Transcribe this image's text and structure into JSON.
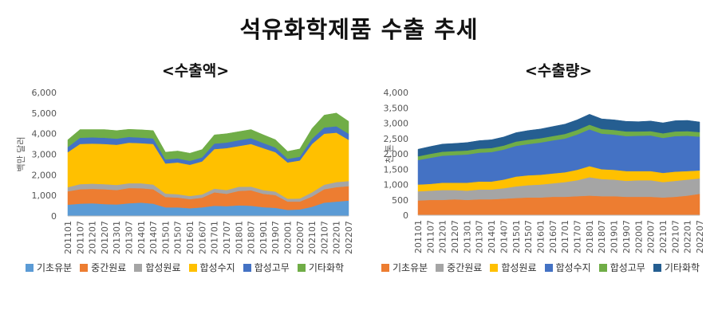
{
  "page": {
    "title": "석유화학제품 수출 추세"
  },
  "chart_data": [
    {
      "type": "area",
      "stacked": true,
      "title": "<수출액>",
      "ylabel": "백만 달러",
      "ylim": [
        0,
        6000
      ],
      "yticks": [
        0,
        1000,
        2000,
        3000,
        4000,
        5000,
        6000
      ],
      "ytick_labels": [
        "0",
        "1,000",
        "2,000",
        "3,000",
        "4,000",
        "5,000",
        "6,000"
      ],
      "x_tick_labels": [
        "201101",
        "201107",
        "201201",
        "201207",
        "201301",
        "201307",
        "201401",
        "201407",
        "201501",
        "201507",
        "201601",
        "201607",
        "201701",
        "201707",
        "201801",
        "201807",
        "201901",
        "201907",
        "202001",
        "202007",
        "202101",
        "202107",
        "202201",
        "202207"
      ],
      "series": [
        {
          "name": "기초유분",
          "color": "#5B9BD5",
          "values": [
            550,
            600,
            620,
            580,
            560,
            620,
            650,
            600,
            420,
            420,
            380,
            420,
            500,
            480,
            520,
            500,
            430,
            400,
            300,
            320,
            450,
            650,
            700,
            750
          ]
        },
        {
          "name": "중간원료",
          "color": "#ED7D31",
          "values": [
            650,
            700,
            700,
            720,
            700,
            740,
            700,
            700,
            500,
            480,
            440,
            470,
            650,
            600,
            700,
            750,
            650,
            620,
            400,
            380,
            500,
            650,
            700,
            700
          ]
        },
        {
          "name": "합성원료",
          "color": "#A5A5A5",
          "values": [
            200,
            250,
            250,
            250,
            250,
            230,
            240,
            230,
            170,
            160,
            150,
            160,
            180,
            180,
            200,
            180,
            180,
            170,
            140,
            150,
            200,
            220,
            250,
            250
          ]
        },
        {
          "name": "합성수지",
          "color": "#FFC000",
          "values": [
            1700,
            1950,
            1950,
            1950,
            1950,
            1970,
            1950,
            1970,
            1460,
            1540,
            1520,
            1600,
            1920,
            2040,
            1980,
            2070,
            2040,
            1910,
            1760,
            1850,
            2350,
            2480,
            2400,
            2000
          ]
        },
        {
          "name": "합성고무",
          "color": "#4472C4",
          "values": [
            250,
            300,
            300,
            300,
            300,
            280,
            270,
            270,
            200,
            200,
            190,
            200,
            270,
            270,
            280,
            280,
            250,
            230,
            180,
            180,
            250,
            300,
            310,
            300
          ]
        },
        {
          "name": "기타화학",
          "color": "#70AD47",
          "values": [
            350,
            400,
            380,
            400,
            390,
            370,
            380,
            380,
            350,
            360,
            370,
            380,
            420,
            430,
            420,
            420,
            400,
            380,
            360,
            380,
            500,
            600,
            640,
            600
          ]
        }
      ]
    },
    {
      "type": "area",
      "stacked": true,
      "title": "<수출량>",
      "ylabel": "천 톤",
      "ylim": [
        0,
        4000
      ],
      "yticks": [
        0,
        500,
        1000,
        1500,
        2000,
        2500,
        3000,
        3500,
        4000
      ],
      "ytick_labels": [
        "0",
        "500",
        "1,000",
        "1,500",
        "2,000",
        "2,500",
        "3,000",
        "3,500",
        "4,000"
      ],
      "x_tick_labels": [
        "201101",
        "201107",
        "201201",
        "201207",
        "201301",
        "201307",
        "201401",
        "201407",
        "201501",
        "201507",
        "201601",
        "201607",
        "201701",
        "201707",
        "201801",
        "201807",
        "201901",
        "201907",
        "202001",
        "202007",
        "202101",
        "202107",
        "202201",
        "202207"
      ],
      "series": [
        {
          "name": "기초유분",
          "color": "#ED7D31",
          "values": [
            480,
            500,
            500,
            520,
            500,
            520,
            520,
            540,
            560,
            580,
            580,
            600,
            600,
            620,
            640,
            620,
            620,
            600,
            600,
            600,
            580,
            600,
            640,
            700
          ]
        },
        {
          "name": "중간원료",
          "color": "#A5A5A5",
          "values": [
            300,
            300,
            320,
            300,
            300,
            320,
            320,
            340,
            380,
            400,
            420,
            440,
            480,
            520,
            600,
            560,
            540,
            520,
            540,
            540,
            500,
            520,
            520,
            500
          ]
        },
        {
          "name": "합성원료",
          "color": "#FFC000",
          "values": [
            220,
            220,
            240,
            240,
            260,
            260,
            260,
            280,
            320,
            320,
            320,
            320,
            320,
            340,
            360,
            320,
            320,
            320,
            300,
            300,
            300,
            300,
            280,
            260
          ]
        },
        {
          "name": "합성수지",
          "color": "#4472C4",
          "values": [
            800,
            850,
            880,
            900,
            920,
            940,
            960,
            980,
            1000,
            1020,
            1050,
            1080,
            1100,
            1150,
            1200,
            1160,
            1150,
            1140,
            1150,
            1160,
            1140,
            1160,
            1150,
            1100
          ]
        },
        {
          "name": "합성고무",
          "color": "#70AD47",
          "values": [
            120,
            130,
            130,
            130,
            130,
            130,
            130,
            130,
            140,
            140,
            140,
            140,
            150,
            150,
            150,
            150,
            150,
            150,
            140,
            140,
            150,
            150,
            150,
            150
          ]
        },
        {
          "name": "기타화학",
          "color": "#255E91",
          "values": [
            230,
            240,
            250,
            250,
            260,
            260,
            270,
            280,
            290,
            300,
            300,
            310,
            320,
            330,
            340,
            330,
            330,
            330,
            320,
            330,
            340,
            350,
            350,
            330
          ]
        }
      ]
    }
  ]
}
